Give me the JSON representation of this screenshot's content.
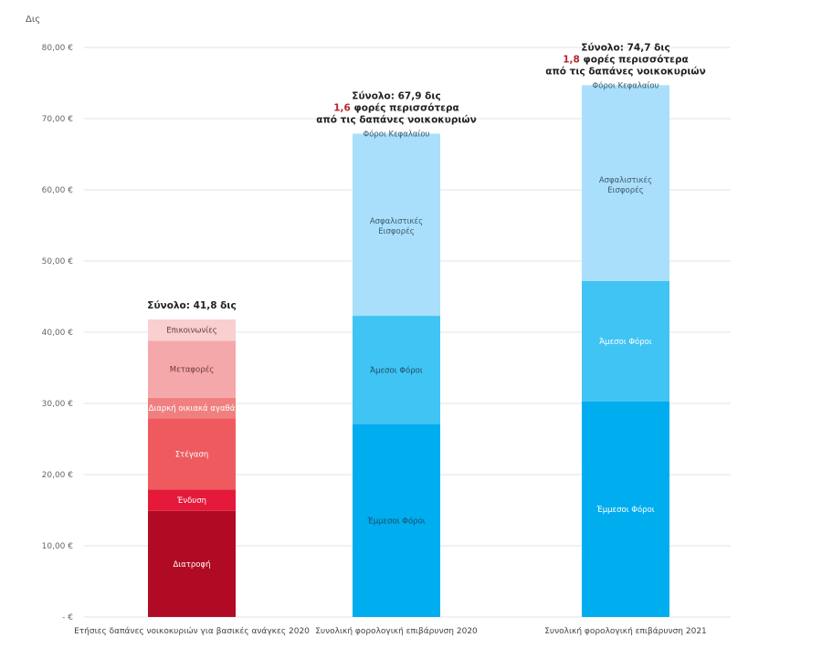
{
  "chart_data": {
    "type": "bar",
    "stacked": true,
    "title": "",
    "ylabel": "Δις",
    "xlabel": "",
    "ylim": [
      0,
      80
    ],
    "yticks": [
      0,
      10,
      20,
      30,
      40,
      50,
      60,
      70,
      80
    ],
    "ytick_labels": [
      "- €",
      "10,00 €",
      "20,00 €",
      "30,00 €",
      "40,00 €",
      "50,00 €",
      "60,00 €",
      "70,00 €",
      "80,00 €"
    ],
    "grid": true,
    "categories": [
      "Ετήσιες δαπάνες νοικοκυριών για βασικές ανάγκες 2020",
      "Συνολική φορολογική επιβάρυνση 2020",
      "Συνολική φορολογική επιβάρυνση 2021"
    ],
    "bars": [
      {
        "category": "Ετήσιες δαπάνες νοικοκυριών για βασικές ανάγκες 2020",
        "segments": [
          {
            "name": "Διατροφή",
            "value": 14.9,
            "color": "#b10a24",
            "text_color": "#ffffff"
          },
          {
            "name": "Ένδυση",
            "value": 3.0,
            "color": "#e5193a",
            "text_color": "#ffffff"
          },
          {
            "name": "Στέγαση",
            "value": 10.0,
            "color": "#ee5a5e",
            "text_color": "#ffffff"
          },
          {
            "name": "Διαρκή οικιακά αγαθά",
            "value": 2.9,
            "color": "#f08080",
            "text_color": "#ffffff"
          },
          {
            "name": "Μεταφορές",
            "value": 8.0,
            "color": "#f5a8aa",
            "text_color": "#6b3a3a"
          },
          {
            "name": "Επικοινωνίες",
            "value": 3.0,
            "color": "#f9cfcf",
            "text_color": "#6b3a3a"
          }
        ],
        "annotation": {
          "total": "Σύνολο: 41,8 δις",
          "multiplier": "",
          "multiplier_text": "",
          "second_line": ""
        }
      },
      {
        "category": "Συνολική φορολογική επιβάρυνση 2020",
        "segments": [
          {
            "name": "Έμμεσοι Φόροι",
            "value": 27.1,
            "color": "#00adef",
            "text_color": "#1c4a66"
          },
          {
            "name": "Άμεσοι Φόροι",
            "value": 15.2,
            "color": "#40c4f3",
            "text_color": "#1c4a66"
          },
          {
            "name": "Ασφαλιστικές Εισφορές",
            "value": 25.4,
            "color": "#a9dffa",
            "text_color": "#3d5a6e"
          },
          {
            "name": "Φόροι Κεφαλαίου",
            "value": 0.2,
            "color": "#a9dffa",
            "text_color": "#3d5a6e"
          }
        ],
        "annotation": {
          "total": "Σύνολο: 67,9 δις",
          "multiplier": "1,6",
          "multiplier_text": "φορές περισσότερα",
          "second_line": "από τις δαπάνες νοικοκυριών"
        }
      },
      {
        "category": "Συνολική φορολογική επιβάρυνση 2021",
        "segments": [
          {
            "name": "Έμμεσοι Φόροι",
            "value": 30.3,
            "color": "#00adef",
            "text_color": "#ffffff"
          },
          {
            "name": "Άμεσοι Φόροι",
            "value": 16.9,
            "color": "#40c4f3",
            "text_color": "#ffffff"
          },
          {
            "name": "Ασφαλιστικές Εισφορές",
            "value": 27.2,
            "color": "#a9dffa",
            "text_color": "#3d5a6e"
          },
          {
            "name": "Φόροι Κεφαλαίου",
            "value": 0.3,
            "color": "#a9dffa",
            "text_color": "#3d5a6e"
          }
        ],
        "annotation": {
          "total": "Σύνολο: 74,7 δις",
          "multiplier": "1,8",
          "multiplier_text": "φορές περισσότερα",
          "second_line": "από τις δαπάνες νοικοκυριών"
        }
      }
    ],
    "legend": "none"
  }
}
